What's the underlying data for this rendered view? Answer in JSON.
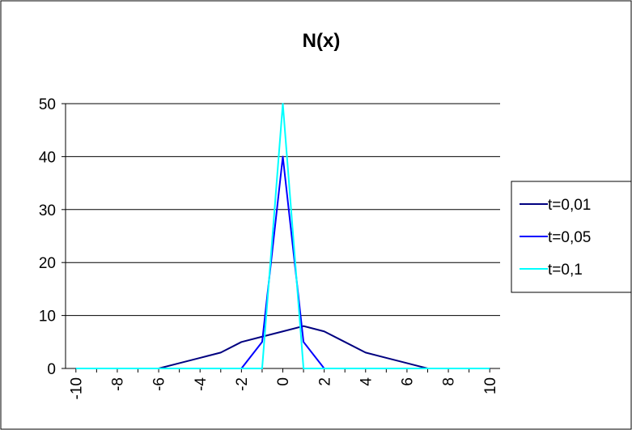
{
  "chart_data": {
    "type": "line",
    "title": "N(x)",
    "xlabel": "",
    "ylabel": "",
    "x": [
      -10,
      -9,
      -8,
      -7,
      -6,
      -5,
      -4,
      -3,
      -2,
      -1,
      0,
      1,
      2,
      3,
      4,
      5,
      6,
      7,
      8,
      9,
      10
    ],
    "x_tick_labels": [
      "-10",
      "-8",
      "-6",
      "-4",
      "-2",
      "0",
      "2",
      "4",
      "6",
      "8",
      "10"
    ],
    "y_tick_labels": [
      "0",
      "10",
      "20",
      "30",
      "40",
      "50"
    ],
    "ylim": [
      0,
      50
    ],
    "grid": "horizontal",
    "legend_position": "right",
    "series": [
      {
        "name": "t=0,01",
        "color": "#000080",
        "values": [
          0,
          0,
          0,
          0,
          0,
          1,
          2,
          3,
          5,
          6,
          7,
          8,
          7,
          5,
          3,
          2,
          1,
          0,
          0,
          0,
          0
        ]
      },
      {
        "name": "t=0,05",
        "color": "#0000ff",
        "values": [
          0,
          0,
          0,
          0,
          0,
          0,
          0,
          0,
          0,
          5,
          40,
          5,
          0,
          0,
          0,
          0,
          0,
          0,
          0,
          0,
          0
        ]
      },
      {
        "name": "t=0,1",
        "color": "#00ffff",
        "values": [
          0,
          0,
          0,
          0,
          0,
          0,
          0,
          0,
          0,
          0,
          50,
          0,
          0,
          0,
          0,
          0,
          0,
          0,
          0,
          0,
          0
        ]
      }
    ]
  }
}
